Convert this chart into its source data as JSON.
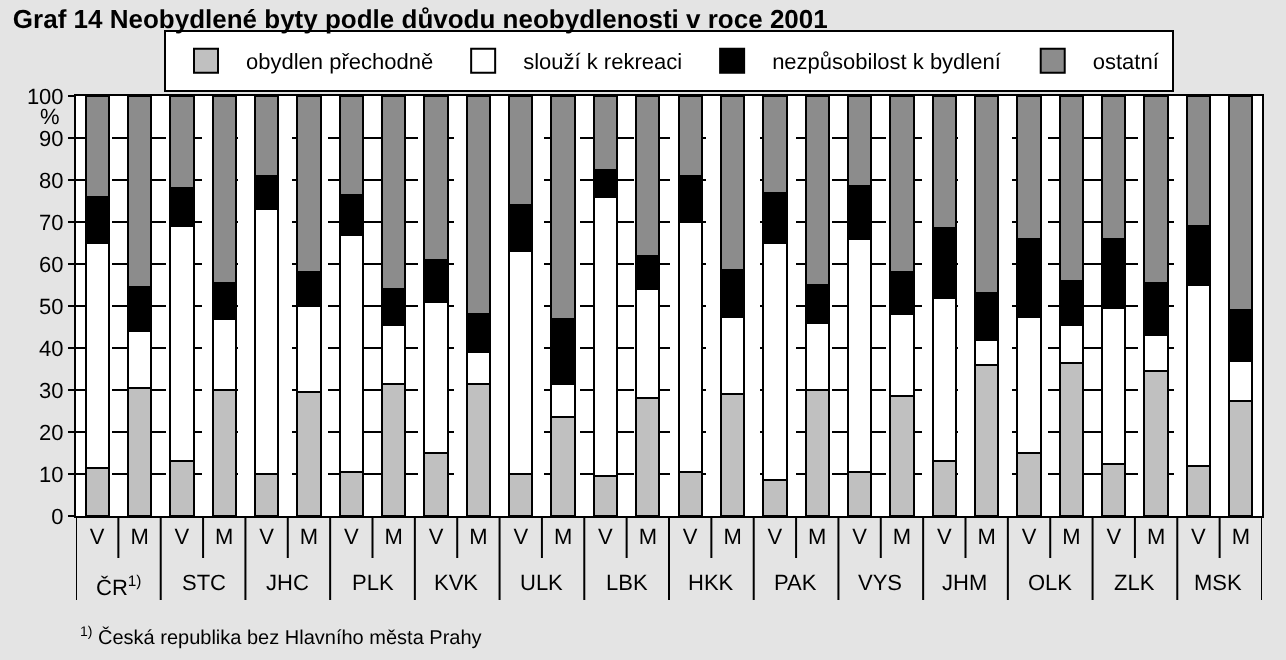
{
  "chart_data": {
    "type": "bar",
    "stacked": true,
    "title": "Graf 14 Neobydlené byty podle důvodu neobydlenosti v roce 2001",
    "ylabel": "%",
    "categories": [
      "V",
      "M",
      "V",
      "M",
      "V",
      "M",
      "V",
      "M",
      "V",
      "M",
      "V",
      "M",
      "V",
      "M",
      "V",
      "M",
      "V",
      "M",
      "V",
      "M",
      "V",
      "M",
      "V",
      "M",
      "V",
      "M",
      "V",
      "M"
    ],
    "series": [
      {
        "name": "obydlen přechodně",
        "color": "#c0c0c0",
        "values": [
          11.5,
          30.5,
          13,
          30,
          10,
          29.5,
          10.5,
          31.5,
          15,
          31.5,
          10,
          23.5,
          9.5,
          28,
          10.5,
          29,
          8.5,
          30,
          10.5,
          28.5,
          13,
          36,
          15,
          36.5,
          12.5,
          34.5,
          12,
          27.5
        ]
      },
      {
        "name": "slouží k rekreaci",
        "color": "#ffffff",
        "values": [
          53.5,
          13.5,
          56,
          17,
          63,
          20.5,
          56.5,
          14,
          36,
          7.5,
          53,
          8,
          66.5,
          26,
          59.5,
          18.5,
          56.5,
          16,
          55.5,
          19.5,
          39,
          6,
          32.5,
          9,
          37,
          8.5,
          43,
          9.5
        ]
      },
      {
        "name": "nezpůsobilost k bydlení",
        "color": "#000000",
        "values": [
          11,
          10.5,
          9,
          8.5,
          8,
          8,
          9.5,
          8.5,
          10,
          9,
          11,
          15.5,
          6.5,
          8,
          11,
          11,
          12,
          9,
          12.5,
          10,
          16.5,
          11,
          18.5,
          10.5,
          16.5,
          12.5,
          14,
          12
        ]
      },
      {
        "name": "ostatní",
        "color": "#8c8c8c",
        "values": [
          24,
          45.5,
          22,
          44.5,
          19,
          42,
          23.5,
          46,
          39,
          52,
          26,
          53,
          17.5,
          38,
          19,
          41.5,
          23,
          45,
          21.5,
          42,
          31.5,
          47,
          34,
          44,
          34,
          44.5,
          31,
          51
        ]
      }
    ],
    "ylim": [
      0,
      100
    ],
    "yticks": [
      0,
      10,
      20,
      30,
      40,
      50,
      60,
      70,
      80,
      90,
      100
    ],
    "grid": "y",
    "legend": "top",
    "annotations": [
      "ČR$^{1)}$",
      "STC",
      "JHC",
      "PLK",
      "KVK",
      "ULK",
      "LBK",
      "HKK",
      "PAK",
      "VYS",
      "JHM",
      "OLK",
      "ZLK",
      "MSK",
      "$^{1)}$ Česká republika bez Hlavního města Prahy"
    ]
  }
}
